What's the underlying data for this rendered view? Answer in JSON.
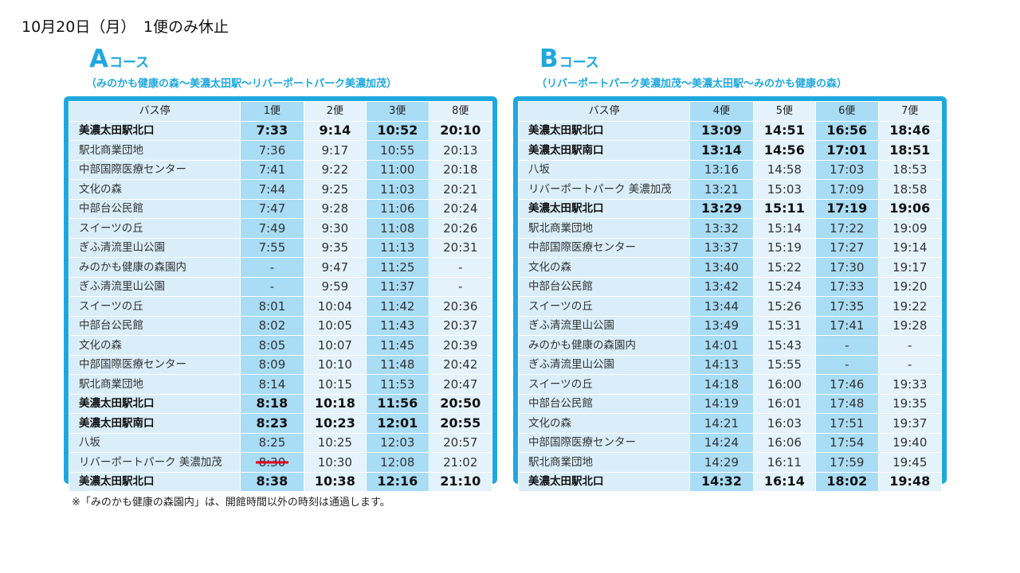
{
  "heading": "10月20日（月）　1便のみ休止",
  "courseA": {
    "letter": "A",
    "label": "コース",
    "subtitle": "（みのかも健康の森～美濃太田駅～リバーポートパーク美濃加茂）",
    "header": [
      "バス停",
      "1便",
      "2便",
      "3便",
      "8便"
    ],
    "rows": [
      {
        "stop": "美濃太田駅北口",
        "times": [
          "7:33",
          "9:14",
          "10:52",
          "20:10"
        ],
        "bold": true
      },
      {
        "stop": "駅北商業団地",
        "times": [
          "7:36",
          "9:17",
          "10:55",
          "20:13"
        ],
        "bold": false
      },
      {
        "stop": "中部国際医療センター",
        "times": [
          "7:41",
          "9:22",
          "11:00",
          "20:18"
        ],
        "bold": false
      },
      {
        "stop": "文化の森",
        "times": [
          "7:44",
          "9:25",
          "11:03",
          "20:21"
        ],
        "bold": false
      },
      {
        "stop": "中部台公民館",
        "times": [
          "7:47",
          "9:28",
          "11:06",
          "20:24"
        ],
        "bold": false
      },
      {
        "stop": "スイーツの丘",
        "times": [
          "7:49",
          "9:30",
          "11:08",
          "20:26"
        ],
        "bold": false
      },
      {
        "stop": "ぎふ清流里山公園",
        "times": [
          "7:55",
          "9:35",
          "11:13",
          "20:31"
        ],
        "bold": false
      },
      {
        "stop": "みのかも健康の森園内",
        "times": [
          "-",
          "9:47",
          "11:25",
          "-"
        ],
        "bold": false
      },
      {
        "stop": "ぎふ清流里山公園",
        "times": [
          "-",
          "9:59",
          "11:37",
          "-"
        ],
        "bold": false
      },
      {
        "stop": "スイーツの丘",
        "times": [
          "8:01",
          "10:04",
          "11:42",
          "20:36"
        ],
        "bold": false
      },
      {
        "stop": "中部台公民館",
        "times": [
          "8:02",
          "10:05",
          "11:43",
          "20:37"
        ],
        "bold": false
      },
      {
        "stop": "文化の森",
        "times": [
          "8:05",
          "10:07",
          "11:45",
          "20:39"
        ],
        "bold": false
      },
      {
        "stop": "中部国際医療センター",
        "times": [
          "8:09",
          "10:10",
          "11:48",
          "20:42"
        ],
        "bold": false
      },
      {
        "stop": "駅北商業団地",
        "times": [
          "8:14",
          "10:15",
          "11:53",
          "20:47"
        ],
        "bold": false
      },
      {
        "stop": "美濃太田駅北口",
        "times": [
          "8:18",
          "10:18",
          "11:56",
          "20:50"
        ],
        "bold": true
      },
      {
        "stop": "美濃太田駅南口",
        "times": [
          "8:23",
          "10:23",
          "12:01",
          "20:55"
        ],
        "bold": true
      },
      {
        "stop": "八坂",
        "times": [
          "8:25",
          "10:25",
          "12:03",
          "20:57"
        ],
        "bold": false
      },
      {
        "stop": "リバーポートパーク 美濃加茂",
        "times": [
          "8:30",
          "10:30",
          "12:08",
          "21:02"
        ],
        "bold": false,
        "struck": [
          0
        ]
      },
      {
        "stop": "美濃太田駅北口",
        "times": [
          "8:38",
          "10:38",
          "12:16",
          "21:10"
        ],
        "bold": true
      }
    ]
  },
  "courseB": {
    "letter": "B",
    "label": "コース",
    "subtitle": "（リバーポートパーク美濃加茂～美濃太田駅～みのかも健康の森）",
    "header": [
      "バス停",
      "4便",
      "5便",
      "6便",
      "7便"
    ],
    "rows": [
      {
        "stop": "美濃太田駅北口",
        "times": [
          "13:09",
          "14:51",
          "16:56",
          "18:46"
        ],
        "bold": true
      },
      {
        "stop": "美濃太田駅南口",
        "times": [
          "13:14",
          "14:56",
          "17:01",
          "18:51"
        ],
        "bold": true
      },
      {
        "stop": "八坂",
        "times": [
          "13:16",
          "14:58",
          "17:03",
          "18:53"
        ],
        "bold": false
      },
      {
        "stop": "リバーポートパーク 美濃加茂",
        "times": [
          "13:21",
          "15:03",
          "17:09",
          "18:58"
        ],
        "bold": false
      },
      {
        "stop": "美濃太田駅北口",
        "times": [
          "13:29",
          "15:11",
          "17:19",
          "19:06"
        ],
        "bold": true
      },
      {
        "stop": "駅北商業団地",
        "times": [
          "13:32",
          "15:14",
          "17:22",
          "19:09"
        ],
        "bold": false
      },
      {
        "stop": "中部国際医療センター",
        "times": [
          "13:37",
          "15:19",
          "17:27",
          "19:14"
        ],
        "bold": false
      },
      {
        "stop": "文化の森",
        "times": [
          "13:40",
          "15:22",
          "17:30",
          "19:17"
        ],
        "bold": false
      },
      {
        "stop": "中部台公民館",
        "times": [
          "13:42",
          "15:24",
          "17:33",
          "19:20"
        ],
        "bold": false
      },
      {
        "stop": "スイーツの丘",
        "times": [
          "13:44",
          "15:26",
          "17:35",
          "19:22"
        ],
        "bold": false
      },
      {
        "stop": "ぎふ清流里山公園",
        "times": [
          "13:49",
          "15:31",
          "17:41",
          "19:28"
        ],
        "bold": false
      },
      {
        "stop": "みのかも健康の森園内",
        "times": [
          "14:01",
          "15:43",
          "-",
          "-"
        ],
        "bold": false
      },
      {
        "stop": "ぎふ清流里山公園",
        "times": [
          "14:13",
          "15:55",
          "-",
          "-"
        ],
        "bold": false
      },
      {
        "stop": "スイーツの丘",
        "times": [
          "14:18",
          "16:00",
          "17:46",
          "19:33"
        ],
        "bold": false
      },
      {
        "stop": "中部台公民館",
        "times": [
          "14:19",
          "16:01",
          "17:48",
          "19:35"
        ],
        "bold": false
      },
      {
        "stop": "文化の森",
        "times": [
          "14:21",
          "16:03",
          "17:51",
          "19:37"
        ],
        "bold": false
      },
      {
        "stop": "中部国際医療センター",
        "times": [
          "14:24",
          "16:06",
          "17:54",
          "19:40"
        ],
        "bold": false
      },
      {
        "stop": "駅北商業団地",
        "times": [
          "14:29",
          "16:11",
          "17:59",
          "19:45"
        ],
        "bold": false
      },
      {
        "stop": "美濃太田駅北口",
        "times": [
          "14:32",
          "16:14",
          "18:02",
          "19:48"
        ],
        "bold": true
      }
    ]
  },
  "note": "※「みのかも健康の森園内」は、開館時間以外の時刻は通過します。",
  "colors": {
    "accent": "#1fa8e0",
    "column_dark": "#a9dcf5",
    "column_light": "#e3f2fb",
    "strike": "#e0001a"
  }
}
